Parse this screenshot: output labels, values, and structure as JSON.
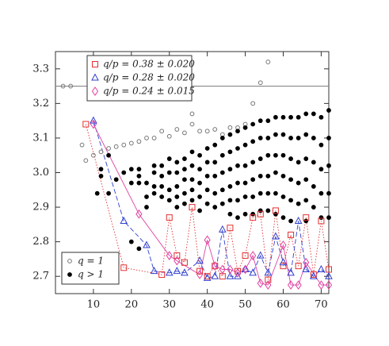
{
  "chart_data": {
    "type": "scatter",
    "xlim": [
      0,
      72
    ],
    "ylim": [
      2.65,
      3.35
    ],
    "xticks": [
      10,
      20,
      30,
      40,
      50,
      60,
      70
    ],
    "yticks": [
      2.7,
      2.8,
      2.9,
      {
        "value": 3,
        "label": "3.0"
      },
      3.1,
      3.2,
      3.3
    ],
    "hlines": [
      3.25
    ],
    "hline_color": "#888888",
    "series": [
      {
        "name": "q = 1",
        "color": "#777777",
        "marker": "circle-open",
        "line": "none",
        "x": [
          2,
          4,
          7,
          8,
          10,
          12,
          14,
          16,
          18,
          20,
          22,
          24,
          26,
          28,
          30,
          32,
          34,
          36,
          36,
          38,
          40,
          42,
          44,
          46,
          48,
          50,
          52,
          54,
          56
        ],
        "values": [
          3.25,
          3.25,
          3.08,
          3.035,
          3.05,
          3.06,
          3.07,
          3.075,
          3.08,
          3.085,
          3.09,
          3.1,
          3.1,
          3.12,
          3.105,
          3.125,
          3.115,
          3.14,
          3.17,
          3.12,
          3.12,
          3.125,
          3.11,
          3.13,
          3.13,
          3.14,
          3.2,
          3.26,
          3.32
        ]
      },
      {
        "name": "q > 1",
        "color": "#000000",
        "marker": "circle-filled",
        "line": "none",
        "x": [
          11,
          12,
          12,
          14,
          14,
          16,
          18,
          20,
          20,
          20,
          22,
          22,
          22,
          22,
          24,
          24,
          24,
          26,
          26,
          26,
          26,
          28,
          28,
          28,
          28,
          30,
          30,
          30,
          30,
          32,
          32,
          32,
          32,
          32,
          34,
          34,
          34,
          34,
          34,
          36,
          36,
          36,
          36,
          36,
          38,
          38,
          38,
          38,
          38,
          40,
          40,
          40,
          40,
          40,
          42,
          42,
          42,
          42,
          42,
          44,
          44,
          44,
          44,
          44,
          46,
          46,
          46,
          46,
          46,
          46,
          48,
          48,
          48,
          48,
          48,
          48,
          50,
          50,
          50,
          50,
          50,
          50,
          52,
          52,
          52,
          52,
          52,
          52,
          54,
          54,
          54,
          54,
          54,
          54,
          56,
          56,
          56,
          56,
          56,
          56,
          58,
          58,
          58,
          58,
          58,
          58,
          60,
          60,
          60,
          60,
          60,
          60,
          62,
          62,
          62,
          62,
          62,
          62,
          64,
          64,
          64,
          64,
          64,
          66,
          66,
          66,
          66,
          66,
          66,
          68,
          68,
          68,
          68,
          68,
          70,
          70,
          70,
          70,
          70,
          72,
          72,
          72,
          72,
          72
        ],
        "values": [
          2.94,
          3.01,
          2.99,
          3.05,
          2.94,
          2.98,
          3.0,
          3.01,
          2.97,
          2.8,
          3.01,
          2.99,
          2.97,
          2.78,
          2.97,
          2.93,
          2.9,
          3.02,
          3.0,
          2.96,
          2.94,
          3.02,
          2.99,
          2.96,
          2.93,
          3.04,
          3.0,
          2.95,
          2.92,
          3.03,
          3.0,
          2.96,
          2.93,
          2.9,
          3.04,
          3.01,
          2.98,
          2.94,
          2.91,
          3.06,
          3.02,
          2.98,
          2.95,
          2.92,
          3.05,
          3.01,
          2.97,
          2.93,
          2.89,
          3.07,
          3.03,
          2.99,
          2.95,
          2.91,
          3.08,
          3.03,
          2.99,
          2.94,
          2.9,
          3.1,
          3.05,
          3.0,
          2.95,
          2.91,
          3.11,
          3.06,
          3.01,
          2.96,
          2.92,
          2.88,
          3.12,
          3.07,
          3.02,
          2.97,
          2.92,
          2.87,
          3.13,
          3.08,
          3.02,
          2.97,
          2.93,
          2.88,
          3.14,
          3.09,
          3.03,
          2.98,
          2.93,
          2.88,
          3.15,
          3.1,
          3.04,
          2.99,
          2.94,
          2.89,
          3.15,
          3.1,
          3.05,
          2.99,
          2.94,
          2.89,
          3.16,
          3.11,
          3.05,
          3.0,
          2.94,
          2.88,
          3.16,
          3.11,
          3.05,
          2.99,
          2.93,
          2.87,
          3.16,
          3.1,
          3.04,
          2.98,
          2.92,
          2.86,
          3.16,
          3.1,
          3.03,
          2.97,
          2.91,
          3.17,
          3.11,
          3.04,
          2.98,
          2.92,
          2.86,
          3.17,
          3.1,
          3.03,
          2.96,
          2.9,
          3.16,
          3.08,
          3.01,
          2.94,
          2.87,
          3.18,
          3.1,
          3.02,
          2.94,
          2.87
        ]
      },
      {
        "name": "q/p = 0.38 ± 0.020",
        "color": "#e03030",
        "marker": "square-open",
        "line": "dotted",
        "x": [
          8,
          18,
          28,
          30,
          32,
          34,
          36,
          38,
          40,
          42,
          44,
          46,
          48,
          50,
          52,
          54,
          56,
          58,
          60,
          62,
          64,
          66,
          68,
          70,
          72
        ],
        "values": [
          3.14,
          2.725,
          2.705,
          2.87,
          2.76,
          2.74,
          2.9,
          2.715,
          2.7,
          2.73,
          2.7,
          2.84,
          2.715,
          2.76,
          2.87,
          2.88,
          2.69,
          2.89,
          2.73,
          2.82,
          2.73,
          2.87,
          2.705,
          2.86,
          2.72
        ]
      },
      {
        "name": "q/p = 0.28 ± 0.020",
        "color": "#3040d0",
        "marker": "triangle-open",
        "line": "dashed",
        "x": [
          10,
          18,
          24,
          26,
          30,
          32,
          34,
          38,
          40,
          42,
          44,
          46,
          48,
          50,
          52,
          54,
          56,
          58,
          60,
          62,
          64,
          66,
          68,
          70,
          72
        ],
        "values": [
          3.15,
          2.86,
          2.79,
          2.715,
          2.71,
          2.715,
          2.71,
          2.745,
          2.695,
          2.7,
          2.835,
          2.7,
          2.7,
          2.72,
          2.71,
          2.76,
          2.71,
          2.815,
          2.74,
          2.71,
          2.86,
          2.72,
          2.7,
          2.72,
          2.7
        ]
      },
      {
        "name": "q/p = 0.24 ± 0.015",
        "color": "#e040a0",
        "marker": "diamond-open",
        "line": "solid",
        "x": [
          10,
          22,
          30,
          32,
          38,
          40,
          42,
          44,
          46,
          48,
          50,
          52,
          54,
          56,
          60,
          62,
          64,
          66,
          70,
          72
        ],
        "values": [
          3.14,
          2.88,
          2.76,
          2.745,
          2.705,
          2.805,
          2.73,
          2.72,
          2.72,
          2.71,
          2.72,
          2.76,
          2.68,
          2.675,
          2.79,
          2.675,
          2.675,
          2.74,
          2.675,
          2.675
        ]
      }
    ],
    "legends": [
      {
        "loc": "upper left",
        "series": [
          2,
          3,
          4
        ]
      },
      {
        "loc": "lower left",
        "series": [
          0,
          1
        ]
      }
    ]
  }
}
